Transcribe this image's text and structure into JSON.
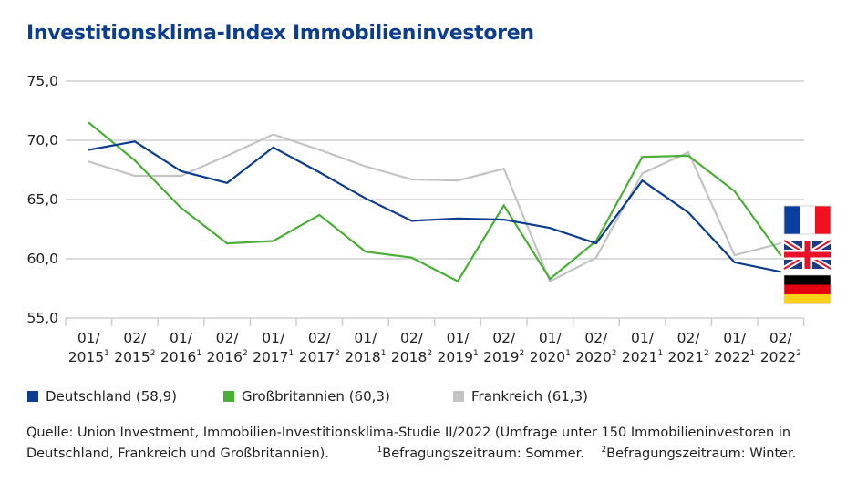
{
  "title": "Investitionsklima-Index Immobilieninvestoren",
  "chart_data": {
    "type": "line",
    "title": "Investitionsklima-Index Immobilieninvestoren",
    "xlabel": "",
    "ylabel": "",
    "ylim": [
      55,
      75
    ],
    "yticks": [
      "55,0",
      "60,0",
      "65,0",
      "70,0",
      "75,0"
    ],
    "grid": true,
    "legend_position": "bottom",
    "categories": [
      {
        "line1": "01/",
        "year": "2015",
        "sup": "1"
      },
      {
        "line1": "02/",
        "year": "2015",
        "sup": "2"
      },
      {
        "line1": "01/",
        "year": "2016",
        "sup": "1"
      },
      {
        "line1": "02/",
        "year": "2016",
        "sup": "2"
      },
      {
        "line1": "01/",
        "year": "2017",
        "sup": "1"
      },
      {
        "line1": "02/",
        "year": "2017",
        "sup": "2"
      },
      {
        "line1": "01/",
        "year": "2018",
        "sup": "1"
      },
      {
        "line1": "02/",
        "year": "2018",
        "sup": "2"
      },
      {
        "line1": "01/",
        "year": "2019",
        "sup": "1"
      },
      {
        "line1": "02/",
        "year": "2019",
        "sup": "2"
      },
      {
        "line1": "01/",
        "year": "2020",
        "sup": "1"
      },
      {
        "line1": "02/",
        "year": "2020",
        "sup": "2"
      },
      {
        "line1": "01/",
        "year": "2021",
        "sup": "1"
      },
      {
        "line1": "02/",
        "year": "2021",
        "sup": "2"
      },
      {
        "line1": "01/",
        "year": "2022",
        "sup": "1"
      },
      {
        "line1": "02/",
        "year": "2022",
        "sup": "2"
      }
    ],
    "series": [
      {
        "name": "Deutschland (58,9)",
        "color": "#0d3d8e",
        "values": [
          69.2,
          69.9,
          67.4,
          66.4,
          69.4,
          67.3,
          65.1,
          63.2,
          63.4,
          63.3,
          62.6,
          61.3,
          66.6,
          63.9,
          59.7,
          58.9
        ]
      },
      {
        "name": "Großbritannien (60,3)",
        "color": "#4aae37",
        "values": [
          71.5,
          68.3,
          64.3,
          61.3,
          61.5,
          63.7,
          60.6,
          60.1,
          58.1,
          64.5,
          58.3,
          61.5,
          68.6,
          68.7,
          65.7,
          60.3
        ]
      },
      {
        "name": "Frankreich (61,3)",
        "color": "#c4c4c4",
        "values": [
          68.2,
          67.0,
          67.0,
          68.7,
          70.5,
          69.2,
          67.8,
          66.7,
          66.6,
          67.6,
          58.1,
          60.1,
          67.2,
          69.0,
          60.3,
          61.3
        ]
      }
    ]
  },
  "flags": [
    "france-flag",
    "uk-flag",
    "germany-flag"
  ],
  "footer": {
    "line1": "Quelle: Union Investment, Immobilien-Investitionsklima-Studie II/2022 (Umfrage unter 150 Immobilieninvestoren in",
    "line2": "Deutschland, Frankreich und Großbritannien).",
    "note1_sup": "1",
    "note1": "Befragungszeitraum: Sommer.",
    "note2_sup": "2",
    "note2": "Befragungszeitraum: Winter."
  }
}
